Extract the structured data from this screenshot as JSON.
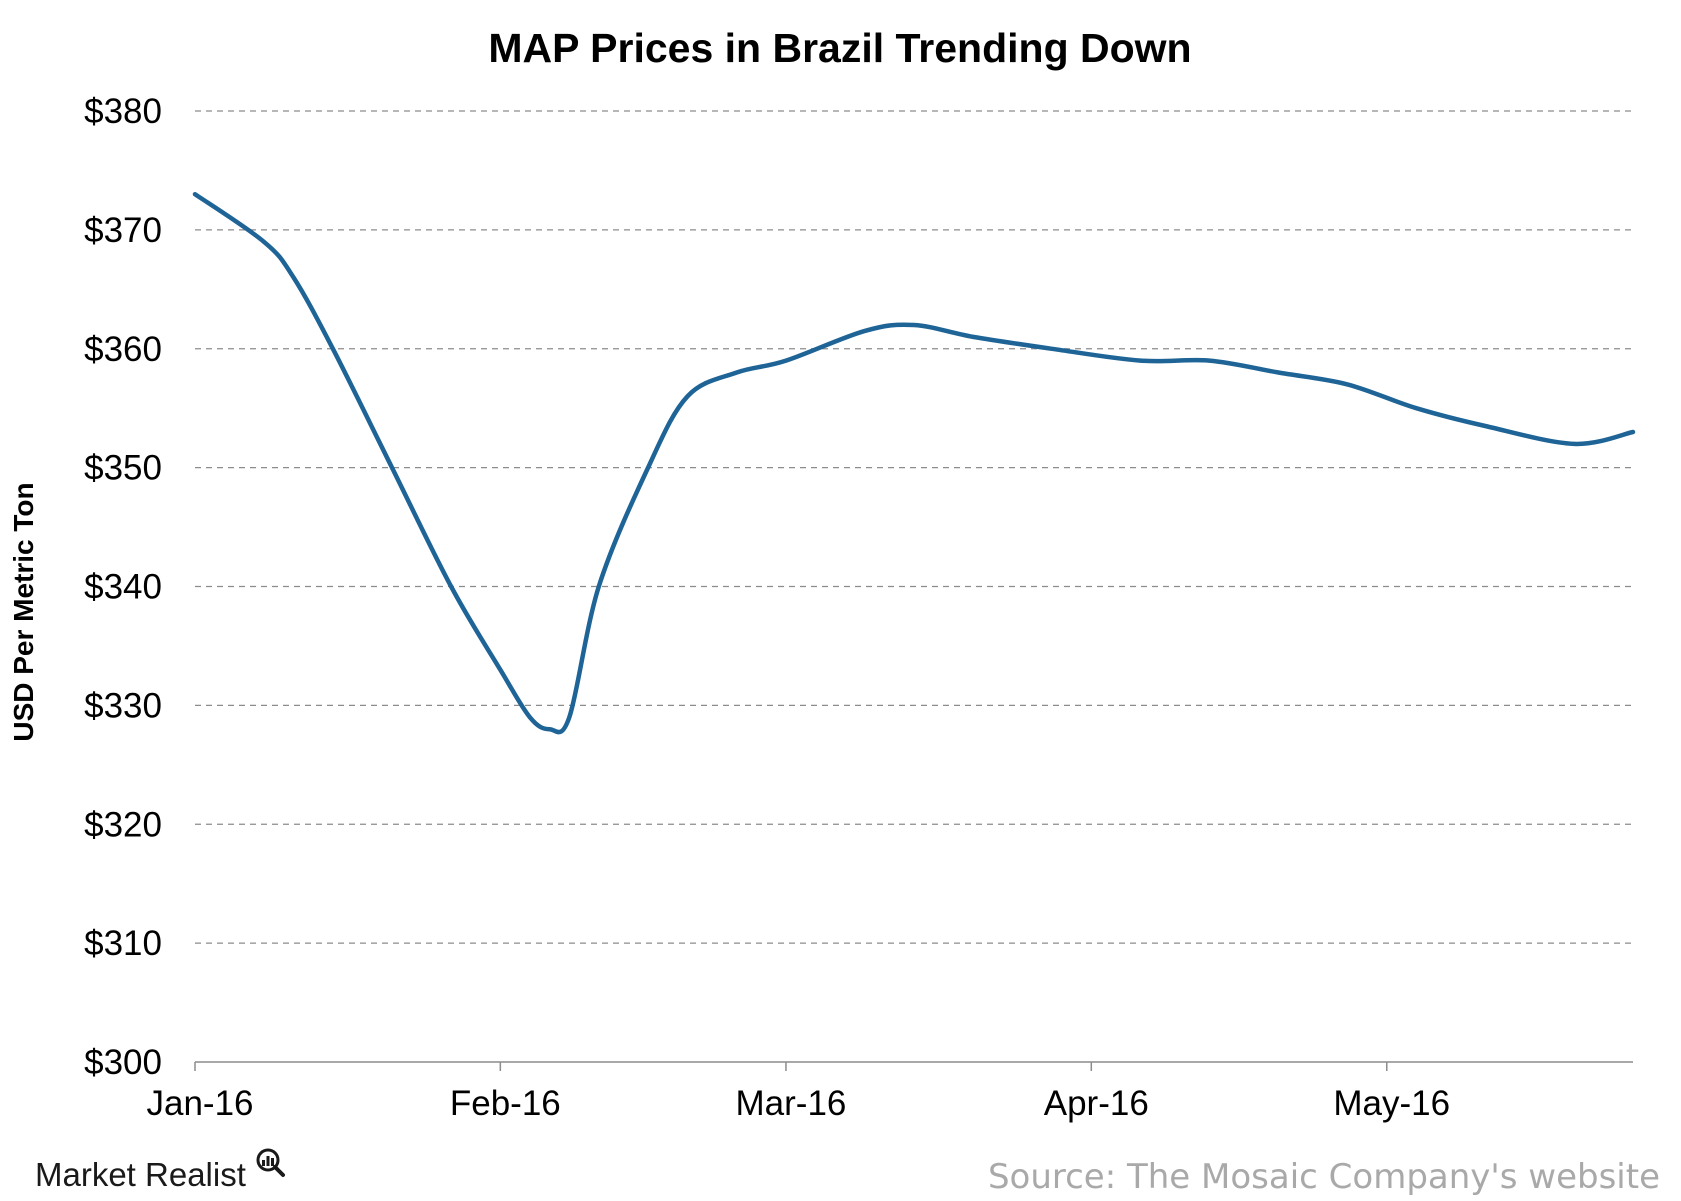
{
  "chart_data": {
    "type": "line",
    "title": "MAP Prices in Brazil Trending Down",
    "xlabel": "",
    "ylabel": "USD Per Metric Ton",
    "x_tick_labels": [
      "Jan-16",
      "Feb-16",
      "Mar-16",
      "Apr-16",
      "May-16"
    ],
    "y_tick_labels": [
      "$380",
      "$370",
      "$360",
      "$350",
      "$340",
      "$330",
      "$320",
      "$310",
      "$300"
    ],
    "ylim": [
      300,
      380
    ],
    "grid": "horizontal dashed",
    "legend": "none",
    "series": [
      {
        "color": "#1f6496",
        "points": [
          {
            "x": "2016-01-01",
            "y": 373
          },
          {
            "x": "2016-01-08",
            "y": 369
          },
          {
            "x": "2016-01-11",
            "y": 366
          },
          {
            "x": "2016-01-15",
            "y": 360
          },
          {
            "x": "2016-01-21",
            "y": 350
          },
          {
            "x": "2016-01-27",
            "y": 340
          },
          {
            "x": "2016-02-01",
            "y": 333
          },
          {
            "x": "2016-02-04",
            "y": 329
          },
          {
            "x": "2016-02-06",
            "y": 328
          },
          {
            "x": "2016-02-08",
            "y": 329
          },
          {
            "x": "2016-02-11",
            "y": 340
          },
          {
            "x": "2016-02-16",
            "y": 350
          },
          {
            "x": "2016-02-20",
            "y": 356
          },
          {
            "x": "2016-02-25",
            "y": 358
          },
          {
            "x": "2016-03-01",
            "y": 359
          },
          {
            "x": "2016-03-09",
            "y": 361.5
          },
          {
            "x": "2016-03-14",
            "y": 362
          },
          {
            "x": "2016-03-20",
            "y": 361
          },
          {
            "x": "2016-03-28",
            "y": 360
          },
          {
            "x": "2016-04-06",
            "y": 359
          },
          {
            "x": "2016-04-13",
            "y": 359
          },
          {
            "x": "2016-04-20",
            "y": 358
          },
          {
            "x": "2016-04-27",
            "y": 357
          },
          {
            "x": "2016-05-04",
            "y": 355
          },
          {
            "x": "2016-05-11",
            "y": 353.5
          },
          {
            "x": "2016-05-20",
            "y": 352
          },
          {
            "x": "2016-05-26",
            "y": 353
          }
        ]
      }
    ]
  },
  "brand": {
    "name": "Market Realist",
    "icon": "magnifier-bars-icon"
  },
  "source": "Source: The Mosaic Company's website",
  "colors": {
    "line": "#1f6496",
    "grid": "#8c8c8c",
    "axis": "#8c8c8c",
    "source_text": "#a9a9a9"
  }
}
